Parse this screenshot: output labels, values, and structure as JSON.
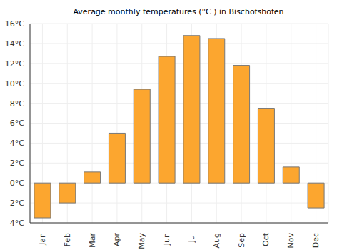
{
  "chart_data": {
    "type": "bar",
    "title": "Average monthly temperatures (°C ) in Bischofshofen",
    "categories": [
      "Jan",
      "Feb",
      "Mar",
      "Apr",
      "May",
      "Jun",
      "Jul",
      "Aug",
      "Sep",
      "Oct",
      "Nov",
      "Dec"
    ],
    "values": [
      -3.5,
      -2,
      1.1,
      5,
      9.4,
      12.7,
      14.8,
      14.5,
      11.8,
      7.5,
      1.6,
      -2.5
    ],
    "color": "#fca62f",
    "ylim": [
      -4,
      16
    ],
    "yticks": [
      {
        "value": -4,
        "label": "-4°C"
      },
      {
        "value": -2,
        "label": "-2°C"
      },
      {
        "value": 0,
        "label": "0°C"
      },
      {
        "value": 2,
        "label": "2°C"
      },
      {
        "value": 4,
        "label": "4°C"
      },
      {
        "value": 6,
        "label": "6°C"
      },
      {
        "value": 8,
        "label": "8°C"
      },
      {
        "value": 10,
        "label": "10°C"
      },
      {
        "value": 12,
        "label": "12°C"
      },
      {
        "value": 14,
        "label": "14°C"
      },
      {
        "value": 16,
        "label": "16°C"
      }
    ],
    "grid": true
  }
}
